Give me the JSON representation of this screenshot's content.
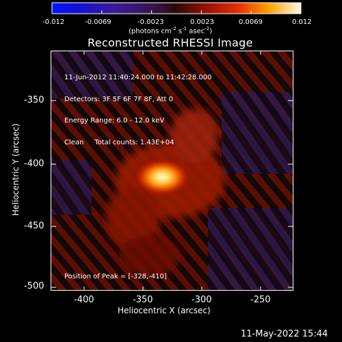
{
  "colorbar": {
    "ticks": [
      "-0.012",
      "-0.0069",
      "-0.0023",
      "0.0023",
      "0.0069",
      "0.012"
    ],
    "units_prefix": "(photons cm",
    "units_exp1": "-2",
    "units_mid": " s",
    "units_exp2": "-1",
    "units_mid2": " asec",
    "units_exp3": "-2",
    "units_suffix": ")"
  },
  "image": {
    "title": "Reconstructed RHESSI Image",
    "info_lines": [
      "11-Jun-2012 11:40:24.000 to 11:42:28.000",
      "Detectors: 3F 5F 6F 7F 8F, Att 0",
      "Energy Range: 6.0 - 12.0 keV",
      "Clean     Total counts: 1.43E+04"
    ],
    "peak_text": "Position of Peak = [-328,-410]",
    "x_axis": {
      "label": "Heliocentric X (arcsec)",
      "ticks": [
        "-400",
        "-350",
        "-300",
        "-250"
      ]
    },
    "y_axis": {
      "label": "Heliocentric Y (arcsec)",
      "ticks": [
        "-350",
        "-400",
        "-450",
        "-500"
      ]
    }
  },
  "timestamp": "11-May-2022 15:44"
}
